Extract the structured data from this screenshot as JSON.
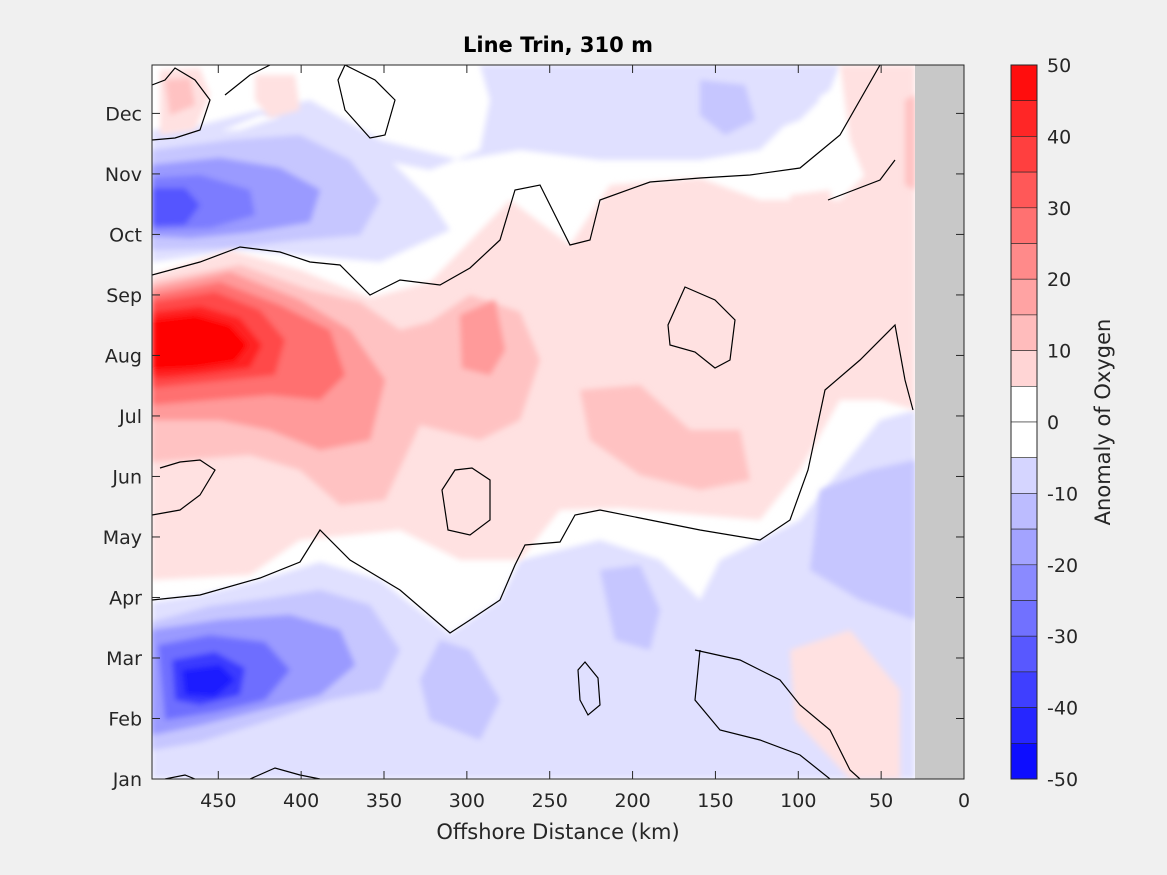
{
  "chart_data": {
    "type": "heatmap",
    "title": "Line Trin, 310 m",
    "xlabel": "Offshore Distance (km)",
    "ylabel": "",
    "xlim": [
      490,
      0
    ],
    "x_reversed": true,
    "x_ticks": [
      450,
      400,
      350,
      300,
      250,
      200,
      150,
      100,
      50,
      0
    ],
    "y_ticks": [
      "Jan",
      "Feb",
      "Mar",
      "Apr",
      "May",
      "Jun",
      "Jul",
      "Aug",
      "Sep",
      "Oct",
      "Nov",
      "Dec"
    ],
    "no_data_region_km": [
      30,
      0
    ],
    "colorbar": {
      "label": "Anomaly of Oxygen",
      "range": [
        -50,
        50
      ],
      "ticks": [
        "50",
        "40",
        "30",
        "20",
        "10",
        "0",
        "-10",
        "-20",
        "-30",
        "-40",
        "-50"
      ],
      "levels_step": 5
    },
    "features": [
      {
        "name": "Aug positive anomaly core",
        "month": "Aug",
        "x_km": 450,
        "value": 45
      },
      {
        "name": "Mar negative anomaly core",
        "month": "Mar",
        "x_km": 440,
        "value": -45
      },
      {
        "name": "Nov negative anomaly core",
        "month": "Nov",
        "x_km": 470,
        "value": -30
      },
      {
        "name": "Dec positive anomaly",
        "month": "Dec",
        "x_km": 470,
        "value": 15
      }
    ]
  },
  "colors": {
    "background": "#f0f0f0",
    "plot_background": "#ffffff",
    "no_data": "#c8c8c8",
    "positive_max": "#ff0000",
    "negative_max": "#0000ff"
  }
}
